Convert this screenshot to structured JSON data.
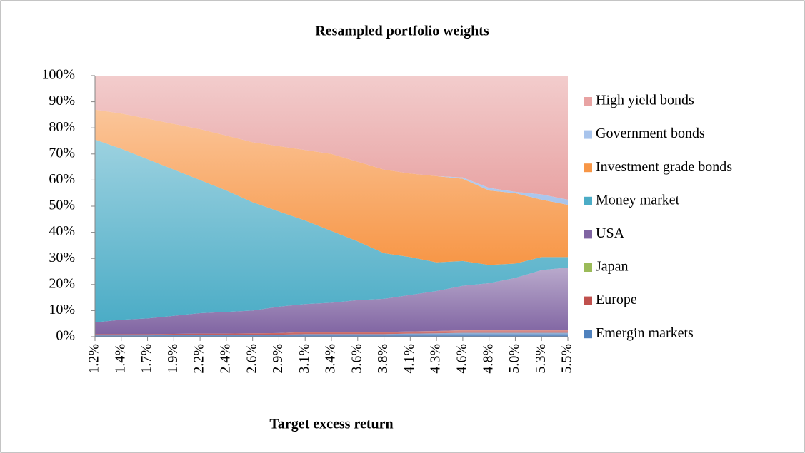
{
  "chart_data": {
    "type": "stacked_area",
    "title": "Resampled portfolio weights",
    "x_label": "Target excess return",
    "categories": [
      "1.2%",
      "1.4%",
      "1.7%",
      "1.9%",
      "2.2%",
      "2.4%",
      "2.6%",
      "2.9%",
      "3.1%",
      "3.4%",
      "3.6%",
      "3.8%",
      "4.1%",
      "4.3%",
      "4.6%",
      "4.8%",
      "5.0%",
      "5.3%",
      "5.5%"
    ],
    "ylim": [
      0,
      100
    ],
    "yticks": [
      {
        "value": 0,
        "label": "0%"
      },
      {
        "value": 10,
        "label": "10%"
      },
      {
        "value": 20,
        "label": "20%"
      },
      {
        "value": 30,
        "label": "30%"
      },
      {
        "value": 40,
        "label": "40%"
      },
      {
        "value": 50,
        "label": "50%"
      },
      {
        "value": 60,
        "label": "60%"
      },
      {
        "value": 70,
        "label": "70%"
      },
      {
        "value": 80,
        "label": "80%"
      },
      {
        "value": 90,
        "label": "90%"
      },
      {
        "value": 100,
        "label": "100%"
      }
    ],
    "legend": "right",
    "series": [
      {
        "name": "Emergin markets",
        "color": "#4f81bd",
        "values": [
          0.5,
          0.5,
          0.5,
          0.6,
          0.7,
          0.7,
          0.8,
          0.8,
          1,
          1,
          1,
          1,
          1.2,
          1.3,
          1.5,
          1.5,
          1.5,
          1.5,
          1.5
        ]
      },
      {
        "name": "Europe",
        "color": "#c0504d",
        "values": [
          0.5,
          0.5,
          0.5,
          0.5,
          0.5,
          0.5,
          0.5,
          0.6,
          0.8,
          0.8,
          0.8,
          0.8,
          0.8,
          0.9,
          1,
          1,
          1,
          1,
          1.2
        ]
      },
      {
        "name": "Japan",
        "color": "#9bbb59",
        "values": [
          0,
          0,
          0,
          0,
          0,
          0,
          0,
          0,
          0,
          0,
          0,
          0,
          0,
          0,
          0,
          0,
          0,
          0,
          0
        ]
      },
      {
        "name": "USA",
        "color": "#8064a2",
        "values": [
          4.5,
          5.5,
          6,
          6.9,
          7.8,
          8.3,
          8.7,
          10.1,
          10.7,
          11.2,
          12.2,
          12.7,
          14,
          15.3,
          17,
          18,
          20,
          23,
          23.8
        ]
      },
      {
        "name": "Money market",
        "color": "#4bacc6",
        "values": [
          70,
          65.5,
          61,
          56,
          51,
          46.5,
          41.5,
          36.5,
          32,
          27.5,
          22.5,
          17.5,
          14.5,
          11,
          9.5,
          7,
          5.5,
          5,
          4
        ]
      },
      {
        "name": "Investment grade bonds",
        "color": "#f79646",
        "values": [
          11.5,
          13.5,
          15.5,
          17.5,
          19.5,
          21,
          23,
          25,
          27,
          29.5,
          30.5,
          32,
          32,
          33,
          31.5,
          28.5,
          27,
          22,
          20
        ]
      },
      {
        "name": "Government bonds",
        "color": "#a8c4ec",
        "values": [
          0,
          0,
          0,
          0,
          0,
          0,
          0,
          0,
          0,
          0,
          0,
          0,
          0,
          0,
          0.5,
          1,
          0.5,
          2,
          2
        ]
      },
      {
        "name": "High yield bonds",
        "color": "#e8a3a3",
        "values": [
          13,
          14.5,
          16.5,
          18.5,
          20.5,
          23,
          25.5,
          27,
          28.5,
          30,
          33,
          36,
          37.5,
          38.5,
          39,
          43,
          44.5,
          45.5,
          47.5
        ]
      }
    ]
  }
}
